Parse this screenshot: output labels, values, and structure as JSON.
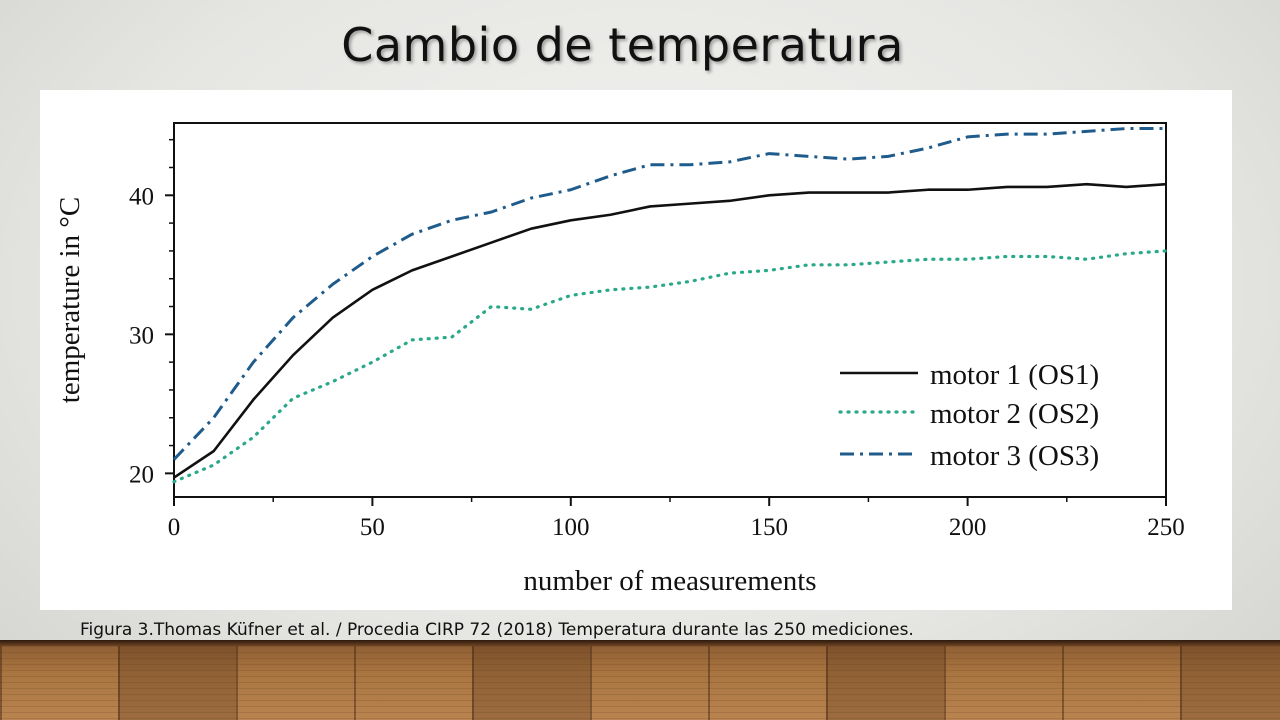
{
  "slide": {
    "title": "Cambio de temperatura",
    "caption": "Figura 3.Thomas Küfner et al. / Procedia CIRP 72 (2018) Temperatura durante las 250 mediciones."
  },
  "colors": {
    "motor1": "#111111",
    "motor2": "#2aa88a",
    "motor3": "#1f5c8c"
  },
  "chart_data": {
    "type": "line",
    "xlabel": "number of measurements",
    "ylabel": "temperature in °C",
    "xlim": [
      0,
      250
    ],
    "ylim": [
      18.3,
      45.2
    ],
    "x_ticks": [
      0,
      50,
      100,
      150,
      200,
      250
    ],
    "y_ticks": [
      20,
      30,
      40
    ],
    "grid": false,
    "legend_position": "lower-right",
    "x": [
      0,
      10,
      20,
      30,
      40,
      50,
      60,
      70,
      80,
      90,
      100,
      110,
      120,
      130,
      140,
      150,
      160,
      170,
      180,
      190,
      200,
      210,
      220,
      230,
      240,
      250
    ],
    "series": [
      {
        "name": "motor 1 (OS1)",
        "style": "solid",
        "values": [
          19.7,
          21.6,
          25.3,
          28.5,
          31.2,
          33.2,
          34.6,
          35.6,
          36.6,
          37.6,
          38.2,
          38.6,
          39.2,
          39.4,
          39.6,
          40.0,
          40.2,
          40.2,
          40.2,
          40.4,
          40.4,
          40.6,
          40.6,
          40.8,
          40.6,
          40.8
        ]
      },
      {
        "name": "motor 2 (OS2)",
        "style": "dotted",
        "values": [
          19.4,
          20.6,
          22.6,
          25.4,
          26.6,
          28.0,
          29.6,
          29.8,
          32.0,
          31.8,
          32.8,
          33.2,
          33.4,
          33.8,
          34.4,
          34.6,
          35.0,
          35.0,
          35.2,
          35.4,
          35.4,
          35.6,
          35.6,
          35.4,
          35.8,
          36.0
        ]
      },
      {
        "name": "motor 3 (OS3)",
        "style": "dashdot",
        "values": [
          21.0,
          24.0,
          28.0,
          31.2,
          33.6,
          35.6,
          37.2,
          38.2,
          38.8,
          39.8,
          40.4,
          41.4,
          42.2,
          42.2,
          42.4,
          43.0,
          42.8,
          42.6,
          42.8,
          43.4,
          44.2,
          44.4,
          44.4,
          44.6,
          44.8,
          44.8
        ]
      }
    ]
  }
}
